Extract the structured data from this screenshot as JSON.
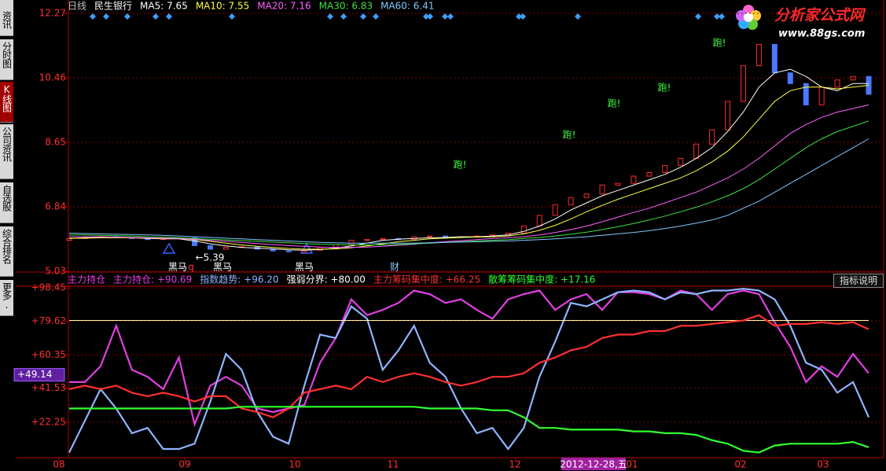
{
  "sidebar": [
    "资讯",
    "分时图",
    "K线图",
    "公司资讯",
    "自选股",
    "综合排名",
    "更多."
  ],
  "watermark": {
    "name": "分析家公式网",
    "url": "www.88gs.com"
  },
  "help_button": "指标说明",
  "chart_data": [
    {
      "type": "candlestick",
      "period": "日线",
      "stock": "民生银行",
      "ylim": [
        5.03,
        12.27
      ],
      "yticks": [
        12.27,
        10.46,
        8.65,
        6.84,
        5.03
      ],
      "grid": true,
      "up_color": "#ff2a2a",
      "down_color": "#4a78ff",
      "ohlc": {
        "open": [
          5.9,
          5.95,
          6.0,
          6.0,
          5.98,
          5.95,
          5.92,
          5.95,
          5.97,
          5.75,
          5.65,
          5.7,
          5.72,
          5.65,
          5.6,
          5.58,
          5.62,
          5.7,
          5.78,
          5.9,
          5.92,
          5.95,
          5.92,
          6.0,
          6.02,
          5.98,
          6.0,
          6.02,
          6.05,
          6.1,
          6.3,
          6.6,
          6.9,
          7.1,
          7.2,
          7.45,
          7.5,
          7.7,
          7.8,
          8.0,
          8.2,
          8.6,
          9.0,
          9.8,
          10.8,
          11.4,
          10.6,
          10.3,
          9.7,
          10.2,
          10.4,
          10.5
        ],
        "close": [
          5.95,
          6.0,
          6.0,
          5.98,
          5.95,
          5.92,
          5.95,
          5.97,
          5.75,
          5.65,
          5.7,
          5.72,
          5.65,
          5.6,
          5.58,
          5.62,
          5.7,
          5.78,
          5.9,
          5.92,
          5.95,
          5.92,
          6.0,
          6.02,
          5.98,
          6.0,
          6.02,
          6.05,
          6.1,
          6.3,
          6.6,
          6.9,
          7.1,
          7.2,
          7.45,
          7.5,
          7.7,
          7.8,
          8.0,
          8.2,
          8.6,
          9.0,
          9.8,
          10.8,
          11.4,
          10.6,
          10.3,
          9.7,
          10.2,
          10.4,
          10.5,
          10.0
        ]
      },
      "series": [
        {
          "name": "MA5: 7.65",
          "color": "#ffffff",
          "values": [
            5.95,
            5.97,
            5.98,
            5.98,
            5.97,
            5.95,
            5.94,
            5.94,
            5.88,
            5.8,
            5.74,
            5.7,
            5.68,
            5.66,
            5.63,
            5.62,
            5.64,
            5.68,
            5.74,
            5.82,
            5.9,
            5.93,
            5.95,
            5.97,
            5.98,
            6.0,
            6.0,
            6.02,
            6.05,
            6.15,
            6.3,
            6.5,
            6.75,
            6.95,
            7.15,
            7.3,
            7.45,
            7.6,
            7.75,
            7.95,
            8.2,
            8.5,
            8.95,
            9.5,
            10.2,
            10.6,
            10.7,
            10.5,
            10.2,
            10.1,
            10.3,
            10.3
          ]
        },
        {
          "name": "MA10: 7.55",
          "color": "#ffff40",
          "values": [
            5.95,
            5.96,
            5.97,
            5.97,
            5.97,
            5.96,
            5.95,
            5.95,
            5.92,
            5.87,
            5.82,
            5.77,
            5.73,
            5.7,
            5.67,
            5.65,
            5.65,
            5.66,
            5.69,
            5.74,
            5.8,
            5.86,
            5.9,
            5.94,
            5.96,
            5.98,
            5.99,
            6.0,
            6.02,
            6.08,
            6.18,
            6.32,
            6.5,
            6.7,
            6.88,
            7.05,
            7.2,
            7.35,
            7.5,
            7.65,
            7.85,
            8.1,
            8.4,
            8.8,
            9.3,
            9.8,
            10.1,
            10.2,
            10.2,
            10.15,
            10.2,
            10.25
          ]
        },
        {
          "name": "MA20: 7.16",
          "color": "#ff60ff",
          "values": [
            6.0,
            6.0,
            6.0,
            5.99,
            5.98,
            5.97,
            5.96,
            5.95,
            5.93,
            5.9,
            5.87,
            5.84,
            5.81,
            5.78,
            5.75,
            5.73,
            5.71,
            5.7,
            5.7,
            5.71,
            5.73,
            5.76,
            5.79,
            5.83,
            5.86,
            5.89,
            5.92,
            5.95,
            5.97,
            6.0,
            6.05,
            6.12,
            6.2,
            6.3,
            6.42,
            6.55,
            6.68,
            6.8,
            6.95,
            7.1,
            7.25,
            7.45,
            7.65,
            7.9,
            8.2,
            8.55,
            8.9,
            9.15,
            9.35,
            9.5,
            9.6,
            9.7
          ]
        },
        {
          "name": "MA30: 6.83",
          "color": "#40e040",
          "values": [
            6.05,
            6.05,
            6.04,
            6.03,
            6.02,
            6.0,
            5.99,
            5.97,
            5.95,
            5.93,
            5.91,
            5.89,
            5.87,
            5.85,
            5.83,
            5.81,
            5.79,
            5.78,
            5.77,
            5.77,
            5.77,
            5.78,
            5.8,
            5.82,
            5.84,
            5.86,
            5.88,
            5.9,
            5.92,
            5.95,
            5.98,
            6.02,
            6.07,
            6.13,
            6.2,
            6.28,
            6.37,
            6.47,
            6.58,
            6.7,
            6.83,
            6.98,
            7.15,
            7.35,
            7.6,
            7.9,
            8.2,
            8.5,
            8.75,
            8.95,
            9.1,
            9.25
          ]
        },
        {
          "name": "MA60: 6.41",
          "color": "#80c8ff",
          "values": [
            6.1,
            6.09,
            6.08,
            6.07,
            6.06,
            6.05,
            6.04,
            6.02,
            6.0,
            5.98,
            5.96,
            5.94,
            5.92,
            5.9,
            5.88,
            5.86,
            5.84,
            5.83,
            5.82,
            5.82,
            5.82,
            5.82,
            5.82,
            5.83,
            5.84,
            5.85,
            5.86,
            5.87,
            5.88,
            5.9,
            5.92,
            5.94,
            5.97,
            6.0,
            6.04,
            6.08,
            6.12,
            6.17,
            6.23,
            6.3,
            6.38,
            6.47,
            6.6,
            6.8,
            7.0,
            7.25,
            7.5,
            7.75,
            8.0,
            8.25,
            8.5,
            8.75
          ]
        }
      ],
      "annotations": [
        {
          "text": "跑!"
        },
        {
          "text": "跑!"
        },
        {
          "text": "跑!"
        },
        {
          "text": "跑!"
        },
        {
          "text": "跑!"
        },
        {
          "text": "黑马"
        },
        {
          "text": "q"
        },
        {
          "text": "黑马"
        },
        {
          "text": "黑马"
        },
        {
          "text": "←5.39"
        },
        {
          "text": "财"
        }
      ]
    },
    {
      "type": "line",
      "title": "主力持仓",
      "ylim": [
        3,
        99
      ],
      "yticks": [
        {
          "value": 98.45,
          "label": "+98.45"
        },
        {
          "value": 79.62,
          "label": "+79.62"
        },
        {
          "value": 60.35,
          "label": "+60.35"
        },
        {
          "value": 41.53,
          "label": "+41.53"
        },
        {
          "value": 22.25,
          "label": "+22.25"
        }
      ],
      "grid": true,
      "cursor_value": {
        "value": 49.14,
        "label": "+49.14"
      },
      "x_labels": [
        "08",
        "09",
        "10",
        "11",
        "12",
        "2012-12-28,五",
        "01",
        "02",
        "03"
      ],
      "series": [
        {
          "name": "主力持仓: +90.69",
          "color": "#e040e0",
          "values": [
            45,
            45,
            54,
            77,
            52,
            48,
            41,
            59,
            21,
            43,
            48,
            43,
            30,
            28,
            30,
            32,
            56,
            70,
            92,
            83,
            86,
            90,
            97,
            95,
            90,
            92,
            86,
            81,
            92,
            95,
            97,
            86,
            92,
            95,
            86,
            96,
            96,
            95,
            92,
            97,
            95,
            86,
            95,
            97,
            95,
            79,
            65,
            45,
            54,
            48,
            61,
            50
          ]
        },
        {
          "name": "指数趋势: +96.20",
          "color": "#8fb4ff",
          "values": [
            5,
            23,
            41,
            30,
            16,
            19,
            7,
            7,
            10,
            34,
            61,
            52,
            28,
            14,
            10,
            43,
            72,
            70,
            88,
            81,
            52,
            63,
            77,
            56,
            48,
            30,
            16,
            19,
            7,
            19,
            48,
            68,
            90,
            88,
            92,
            96,
            97,
            96,
            92,
            96,
            95,
            97,
            97,
            98,
            97,
            92,
            77,
            56,
            52,
            39,
            45,
            25
          ]
        },
        {
          "name": "强弱分界: +80.00",
          "color": "#ffffa0",
          "value": 80
        },
        {
          "name": "主力筹码集中度: +66.25",
          "color": "#ff3030",
          "values": [
            41,
            43,
            41,
            43,
            39,
            37,
            39,
            37,
            34,
            37,
            37,
            30,
            28,
            25,
            30,
            39,
            41,
            43,
            41,
            48,
            45,
            48,
            50,
            48,
            45,
            43,
            45,
            48,
            48,
            50,
            56,
            59,
            63,
            65,
            70,
            72,
            72,
            74,
            74,
            77,
            77,
            78,
            79,
            80,
            83,
            77,
            78,
            78,
            79,
            78,
            79,
            75
          ]
        },
        {
          "name": "散筹筹码集中度: +17.16",
          "color": "#30ff30",
          "values": [
            30,
            30,
            30,
            30,
            30,
            30,
            30,
            30,
            30,
            30,
            30,
            31,
            31,
            31,
            31,
            31,
            31,
            31,
            31,
            31,
            31,
            31,
            31,
            30,
            30,
            30,
            30,
            29,
            29,
            25,
            19,
            19,
            18,
            18,
            18,
            18,
            17,
            17,
            16,
            16,
            15,
            12,
            10,
            6,
            5,
            9,
            10,
            10,
            10,
            10,
            11,
            8
          ]
        }
      ]
    }
  ]
}
